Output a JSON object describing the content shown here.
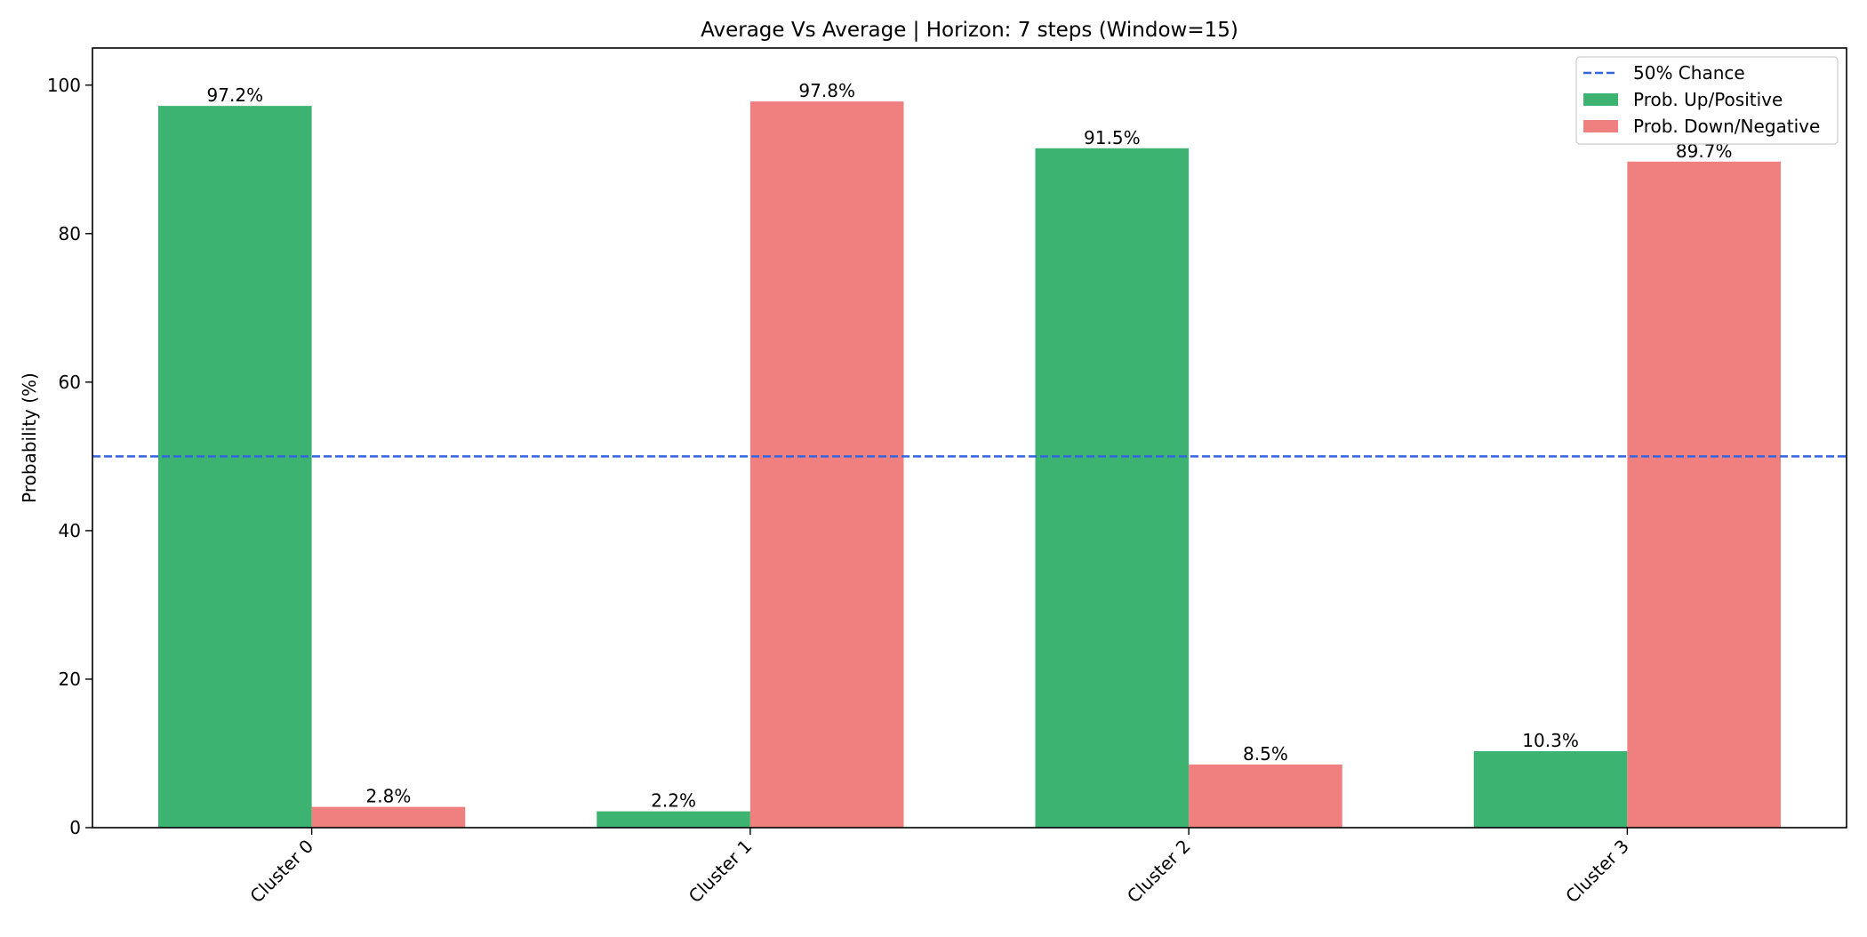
{
  "chart_data": {
    "type": "bar",
    "title": "Average Vs Average | Horizon: 7 steps (Window=15)",
    "xlabel": "",
    "ylabel": "Probability (%)",
    "ylim": [
      0,
      105
    ],
    "yticks": [
      0,
      20,
      40,
      60,
      80,
      100
    ],
    "categories": [
      "Cluster 0",
      "Cluster 1",
      "Cluster 2",
      "Cluster 3"
    ],
    "series": [
      {
        "name": "Prob. Up/Positive",
        "color": "#3cb371",
        "values": [
          97.2,
          2.2,
          91.5,
          10.3
        ],
        "labels": [
          "97.2%",
          "2.2%",
          "91.5%",
          "10.3%"
        ]
      },
      {
        "name": "Prob. Down/Negative",
        "color": "#f08080",
        "values": [
          2.8,
          97.8,
          8.5,
          89.7
        ],
        "labels": [
          "2.8%",
          "97.8%",
          "8.5%",
          "89.7%"
        ]
      }
    ],
    "reference_line": {
      "name": "50% Chance",
      "value": 50,
      "color": "#3465e0",
      "style": "dashed"
    },
    "grid": false,
    "legend_position": "top-right",
    "tick_label_rotation": -45
  }
}
